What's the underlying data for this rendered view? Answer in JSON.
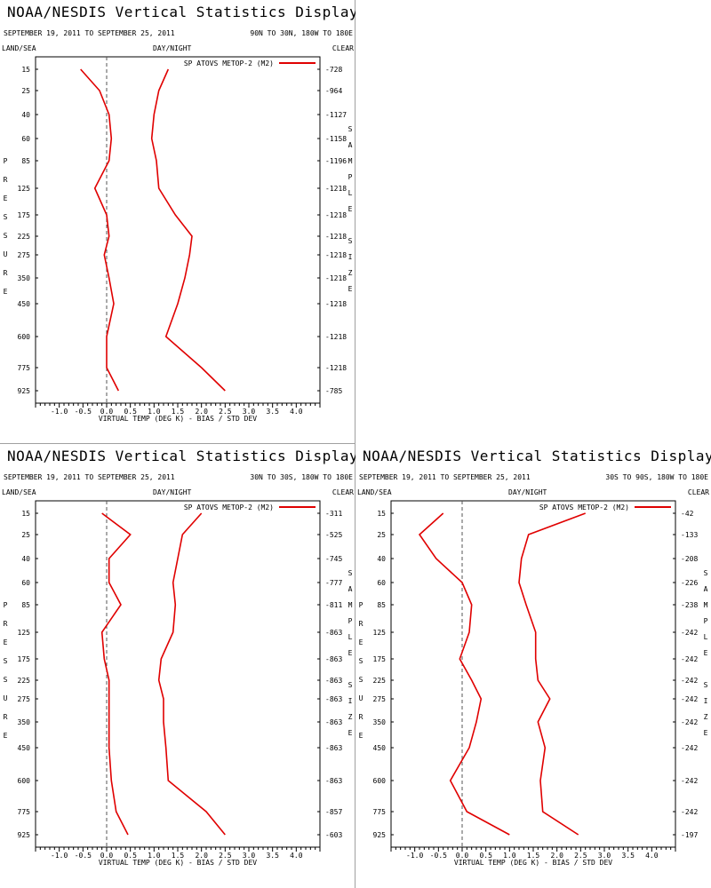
{
  "colors": {
    "series": "#e00000",
    "axis": "#000000",
    "zero_line": "#555555",
    "divider": "#a0a0a0"
  },
  "labels": {
    "title": "NOAA/NESDIS Vertical Statistics Display",
    "dates": "SEPTEMBER 19, 2011 TO SEPTEMBER 25, 2011",
    "land_sea": "LAND/SEA",
    "day_night": "DAY/NIGHT",
    "clear": "CLEAR",
    "xlabel": "VIRTUAL TEMP (DEG K) - BIAS / STD DEV",
    "ylabel": "PRESSURE",
    "right_label": "SAMPLE SIZE",
    "legend": "SP ATOVS METOP-2 (M2)"
  },
  "chart_data": [
    {
      "type": "line",
      "region": "90N TO 30N, 180W TO 180E",
      "pressure": [
        15,
        25,
        40,
        60,
        85,
        125,
        175,
        225,
        275,
        350,
        450,
        600,
        775,
        925
      ],
      "sample_size": [
        "728",
        "964",
        "1127",
        "1158",
        "1196",
        "1218",
        "1218",
        "1218",
        "1218",
        "1218",
        "1218",
        "1218",
        "1218",
        "785"
      ],
      "xlim": [
        -1.5,
        4.5
      ],
      "xticks": [
        -1.0,
        -0.5,
        0.0,
        0.5,
        1.0,
        1.5,
        2.0,
        2.5,
        3.0,
        3.5,
        4.0
      ],
      "series": [
        {
          "name": "SP ATOVS METOP-2 (M2)",
          "kind": "bias",
          "values": [
            -0.55,
            -0.15,
            0.05,
            0.1,
            0.05,
            -0.25,
            0.0,
            0.05,
            -0.05,
            0.05,
            0.15,
            0.0,
            0.0,
            0.25
          ]
        },
        {
          "name": "SP ATOVS METOP-2 (M2)",
          "kind": "std_dev",
          "values": [
            1.3,
            1.1,
            1.0,
            0.95,
            1.05,
            1.1,
            1.45,
            1.8,
            1.75,
            1.65,
            1.5,
            1.25,
            2.0,
            2.5
          ]
        }
      ]
    },
    {
      "type": "line",
      "region": "30N TO 30S, 180W TO 180E",
      "pressure": [
        15,
        25,
        40,
        60,
        85,
        125,
        175,
        225,
        275,
        350,
        450,
        600,
        775,
        925
      ],
      "sample_size": [
        "311",
        "525",
        "745",
        "777",
        "811",
        "863",
        "863",
        "863",
        "863",
        "863",
        "863",
        "863",
        "857",
        "603"
      ],
      "xlim": [
        -1.5,
        4.5
      ],
      "xticks": [
        -1.0,
        -0.5,
        0.0,
        0.5,
        1.0,
        1.5,
        2.0,
        2.5,
        3.0,
        3.5,
        4.0
      ],
      "series": [
        {
          "name": "SP ATOVS METOP-2 (M2)",
          "kind": "bias",
          "values": [
            -0.1,
            0.5,
            0.05,
            0.05,
            0.3,
            -0.1,
            -0.05,
            0.05,
            0.05,
            0.05,
            0.05,
            0.1,
            0.2,
            0.45
          ]
        },
        {
          "name": "SP ATOVS METOP-2 (M2)",
          "kind": "std_dev",
          "values": [
            2.0,
            1.6,
            1.5,
            1.4,
            1.45,
            1.4,
            1.15,
            1.1,
            1.2,
            1.2,
            1.25,
            1.3,
            2.1,
            2.5
          ]
        }
      ]
    },
    {
      "type": "line",
      "region": "30S TO 90S, 180W TO 180E",
      "pressure": [
        15,
        25,
        40,
        60,
        85,
        125,
        175,
        225,
        275,
        350,
        450,
        600,
        775,
        925
      ],
      "sample_size": [
        "42",
        "133",
        "208",
        "226",
        "238",
        "242",
        "242",
        "242",
        "242",
        "242",
        "242",
        "242",
        "242",
        "197"
      ],
      "xlim": [
        -1.5,
        4.5
      ],
      "xticks": [
        -1.0,
        -0.5,
        0.0,
        0.5,
        1.0,
        1.5,
        2.0,
        2.5,
        3.0,
        3.5,
        4.0
      ],
      "series": [
        {
          "name": "SP ATOVS METOP-2 (M2)",
          "kind": "bias",
          "values": [
            -0.4,
            -0.9,
            -0.55,
            0.0,
            0.2,
            0.15,
            -0.05,
            0.2,
            0.4,
            0.3,
            0.15,
            -0.25,
            0.1,
            1.0
          ]
        },
        {
          "name": "SP ATOVS METOP-2 (M2)",
          "kind": "std_dev",
          "values": [
            2.6,
            1.4,
            1.25,
            1.2,
            1.35,
            1.55,
            1.55,
            1.6,
            1.85,
            1.6,
            1.75,
            1.65,
            1.7,
            2.45
          ]
        }
      ]
    }
  ]
}
